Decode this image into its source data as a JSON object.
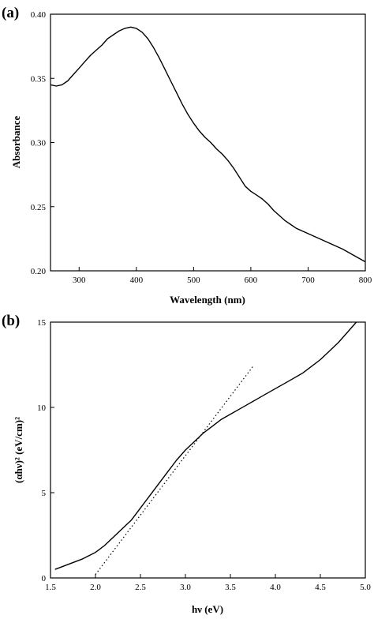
{
  "chart_data": [
    {
      "type": "line",
      "panel_label": "(a)",
      "xlabel": "Wavelength (nm)",
      "ylabel": "Absorbance",
      "xlim": [
        250,
        800
      ],
      "ylim": [
        0.2,
        0.4
      ],
      "xticks": [
        300,
        400,
        500,
        600,
        700,
        800
      ],
      "yticks": [
        0.2,
        0.25,
        0.3,
        0.35,
        0.4
      ],
      "xtick_labels": [
        "300",
        "400",
        "500",
        "600",
        "700",
        "800"
      ],
      "ytick_labels": [
        "0.20",
        "0.25",
        "0.30",
        "0.35",
        "0.40"
      ],
      "grid": false,
      "series": [
        {
          "x": [
            250,
            260,
            270,
            280,
            290,
            300,
            310,
            320,
            330,
            340,
            350,
            360,
            370,
            380,
            390,
            400,
            410,
            420,
            430,
            440,
            450,
            460,
            470,
            480,
            490,
            500,
            510,
            520,
            530,
            540,
            550,
            560,
            570,
            580,
            590,
            600,
            610,
            620,
            630,
            640,
            650,
            660,
            670,
            680,
            690,
            700,
            720,
            740,
            760,
            780,
            800
          ],
          "y": [
            0.345,
            0.344,
            0.345,
            0.348,
            0.353,
            0.358,
            0.363,
            0.368,
            0.372,
            0.376,
            0.381,
            0.384,
            0.387,
            0.389,
            0.39,
            0.389,
            0.386,
            0.381,
            0.374,
            0.366,
            0.357,
            0.348,
            0.339,
            0.33,
            0.322,
            0.315,
            0.309,
            0.304,
            0.3,
            0.295,
            0.291,
            0.286,
            0.28,
            0.273,
            0.266,
            0.262,
            0.259,
            0.256,
            0.252,
            0.247,
            0.243,
            0.239,
            0.236,
            0.233,
            0.231,
            0.229,
            0.225,
            0.221,
            0.217,
            0.212,
            0.207
          ]
        }
      ]
    },
    {
      "type": "line",
      "panel_label": "(b)",
      "xlabel": "hν (eV)",
      "ylabel": "(αhν)² (eV/cm)²",
      "xlim": [
        1.5,
        5.0
      ],
      "ylim": [
        0,
        15
      ],
      "xticks": [
        1.5,
        2.0,
        2.5,
        3.0,
        3.5,
        4.0,
        4.5,
        5.0
      ],
      "yticks": [
        0,
        5,
        10,
        15
      ],
      "xtick_labels": [
        "1.5",
        "2.0",
        "2.5",
        "3.0",
        "3.5",
        "4.0",
        "4.5",
        "5.0"
      ],
      "ytick_labels": [
        "0",
        "5",
        "10",
        "15"
      ],
      "grid": false,
      "series": [
        {
          "x": [
            1.55,
            1.7,
            1.85,
            2.0,
            2.1,
            2.2,
            2.3,
            2.4,
            2.5,
            2.6,
            2.7,
            2.8,
            2.9,
            3.0,
            3.1,
            3.2,
            3.3,
            3.4,
            3.5,
            3.6,
            3.7,
            3.8,
            3.9,
            4.0,
            4.1,
            4.2,
            4.3,
            4.4,
            4.5,
            4.6,
            4.7,
            4.8,
            4.9
          ],
          "y": [
            0.5,
            0.8,
            1.1,
            1.5,
            1.9,
            2.4,
            2.9,
            3.4,
            4.1,
            4.8,
            5.5,
            6.2,
            6.9,
            7.5,
            8.0,
            8.5,
            8.9,
            9.3,
            9.6,
            9.9,
            10.2,
            10.5,
            10.8,
            11.1,
            11.4,
            11.7,
            12.0,
            12.4,
            12.8,
            13.3,
            13.8,
            14.4,
            15.0
          ]
        },
        {
          "style": "dotted",
          "x": [
            2.0,
            3.75
          ],
          "y": [
            0.2,
            12.4
          ]
        }
      ]
    }
  ]
}
